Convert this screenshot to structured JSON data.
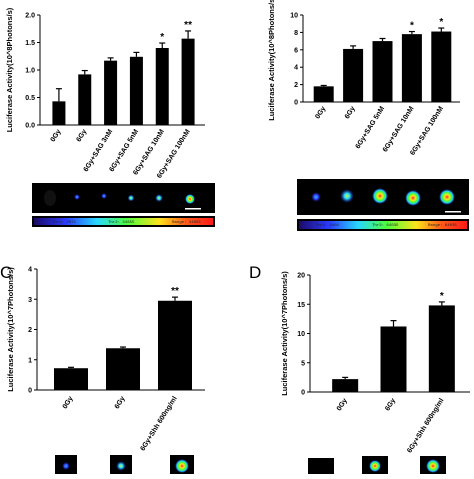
{
  "chart_data": [
    {
      "type": "bar",
      "panel_label": "",
      "ylabel": "Luciferase Activity(10^8Photons/s)",
      "ylim": [
        0,
        2.0
      ],
      "yticks": [
        "0.0",
        "0.5",
        "1.0",
        "1.5",
        "2.0"
      ],
      "categories": [
        "0Gy",
        "6Gy",
        "6Gy+SAG 3nM",
        "6Gy+SAG 5nM",
        "6Gy+SAG 10nM",
        "6Gy+SAG 100nM"
      ],
      "values": [
        0.43,
        0.92,
        1.17,
        1.24,
        1.4,
        1.57
      ],
      "errors": [
        0.23,
        0.07,
        0.05,
        0.08,
        0.09,
        0.14
      ],
      "annotations": [
        "",
        "",
        "",
        "",
        "*",
        "**"
      ],
      "scale_bar_text": {
        "min": "0",
        "mid1": "Thr1: 2071",
        "mid2": "Thr2: 34855",
        "max": "Range: 34855"
      }
    },
    {
      "type": "bar",
      "panel_label": "",
      "ylabel": "Luciferase Activity(10^8Photons/s)",
      "ylim": [
        0,
        10
      ],
      "yticks": [
        "0",
        "2",
        "4",
        "6",
        "8",
        "10"
      ],
      "categories": [
        "0Gy",
        "6Gy",
        "6Gy+SAG 5nM",
        "6Gy+SAG 10nM",
        "6Gy+SAG 100nM"
      ],
      "values": [
        1.8,
        6.1,
        7.0,
        7.8,
        8.1
      ],
      "errors": [
        0.1,
        0.35,
        0.3,
        0.3,
        0.4
      ],
      "annotations": [
        "",
        "",
        "",
        "*",
        "*"
      ],
      "scale_bar_text": {
        "min": "0",
        "mid1": "Thr1: 3402",
        "mid2": "Thr2: 64035",
        "max": "Range: 64035"
      }
    },
    {
      "type": "bar",
      "panel_label": "C",
      "ylabel": "Luciferase Activity(10^7Photons/s)",
      "ylim": [
        0,
        4
      ],
      "yticks": [
        "0",
        "1",
        "2",
        "3",
        "4"
      ],
      "categories": [
        "0Gy",
        "6Gy",
        "6Gy+Shh 600ng/ml"
      ],
      "values": [
        0.72,
        1.38,
        2.95
      ],
      "errors": [
        0.03,
        0.04,
        0.12
      ],
      "annotations": [
        "",
        "",
        "**"
      ]
    },
    {
      "type": "bar",
      "panel_label": "D",
      "ylabel": "Luciferase Activity(10^7Photons/s)",
      "ylim": [
        0,
        20
      ],
      "yticks": [
        "0",
        "5",
        "10",
        "15",
        "20"
      ],
      "categories": [
        "0Gy",
        "6Gy",
        "6Gy+Shh 600ng/ml"
      ],
      "values": [
        2.2,
        11.2,
        14.8
      ],
      "errors": [
        0.3,
        1.0,
        0.6
      ],
      "annotations": [
        "",
        "",
        "*"
      ]
    }
  ]
}
